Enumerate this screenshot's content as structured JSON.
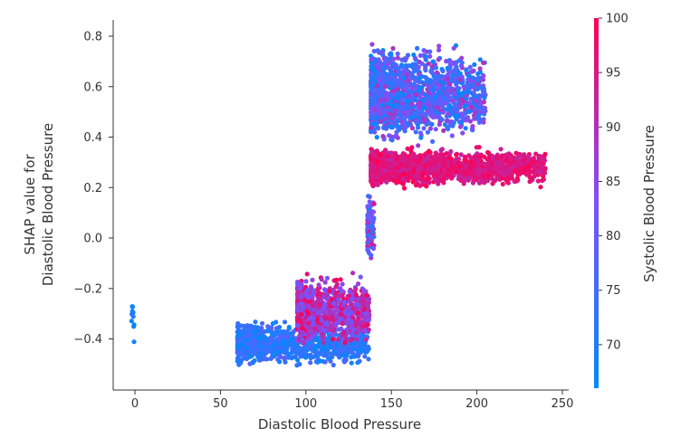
{
  "chart_data": {
    "type": "scatter",
    "title": "",
    "xlabel": "Diastolic Blood Pressure",
    "ylabel_lines": [
      "SHAP value for",
      "Diastolic Blood Pressure"
    ],
    "xlim": [
      -13,
      256
    ],
    "ylim": [
      -0.6,
      0.85
    ],
    "xticks": [
      0,
      50,
      100,
      150,
      200,
      250
    ],
    "yticks": [
      -0.4,
      -0.2,
      0.0,
      0.2,
      0.4,
      0.6,
      0.8
    ],
    "ytick_labels": [
      "−0.4",
      "−0.2",
      "0.0",
      "0.2",
      "0.4",
      "0.6",
      "0.8"
    ],
    "grid": false,
    "spines": [
      "left",
      "bottom"
    ],
    "colorbar": {
      "label": "Systolic Blood Pressure",
      "min": 66,
      "max": 100,
      "ticks": [
        70,
        75,
        80,
        85,
        90,
        95,
        100
      ],
      "color_low": "#008afb",
      "color_mid": "#7c52ff",
      "color_high": "#ff0052"
    },
    "series": [
      {
        "description_points": "dense scatter cloud",
        "clusters": [
          {
            "x_range": [
              -2,
              0
            ],
            "y_range": [
              -0.47,
              -0.2
            ],
            "color_value_range": [
              66,
              72
            ],
            "count": 10
          },
          {
            "x_range": [
              60,
              137
            ],
            "y_range": [
              -0.52,
              -0.32
            ],
            "color_value_range": [
              66,
              78
            ],
            "count": 900
          },
          {
            "x_range": [
              95,
              137
            ],
            "y_range": [
              -0.45,
              -0.13
            ],
            "color_value_range": [
              80,
              100
            ],
            "count": 900
          },
          {
            "x_range": [
              136,
              140
            ],
            "y_range": [
              -0.1,
              0.2
            ],
            "color_value_range": [
              70,
              95
            ],
            "count": 120
          },
          {
            "x_range": [
              138,
              205
            ],
            "y_range": [
              0.35,
              0.79
            ],
            "color_value_range": [
              66,
              90
            ],
            "count": 1600
          },
          {
            "x_range": [
              138,
              240
            ],
            "y_range": [
              0.19,
              0.37
            ],
            "color_value_range": [
              92,
              100
            ],
            "count": 1600
          }
        ]
      }
    ]
  }
}
